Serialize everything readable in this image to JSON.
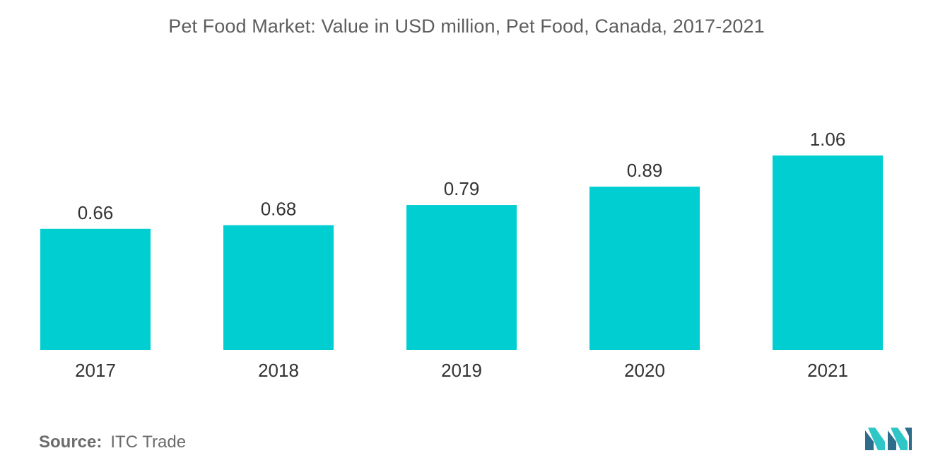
{
  "chart_data": {
    "type": "bar",
    "title": "Pet Food Market: Value in USD million, Pet Food, Canada, 2017-2021",
    "categories": [
      "2017",
      "2018",
      "2019",
      "2020",
      "2021"
    ],
    "values": [
      0.66,
      0.68,
      0.79,
      0.89,
      1.06
    ],
    "value_labels": [
      "0.66",
      "0.68",
      "0.79",
      "0.89",
      "1.06"
    ],
    "xlabel": "",
    "ylabel": "",
    "ylim": [
      0,
      1.06
    ],
    "grid": false,
    "legend": "none",
    "bar_color": "#00CED1"
  },
  "source": {
    "label": "Source:",
    "value": "ITC Trade"
  },
  "colors": {
    "bar": "#00CED1",
    "title_text": "#5e5e5e",
    "axis_text": "#333333",
    "logo_dark": "#2e6c8c",
    "logo_light": "#2ec6c6"
  }
}
